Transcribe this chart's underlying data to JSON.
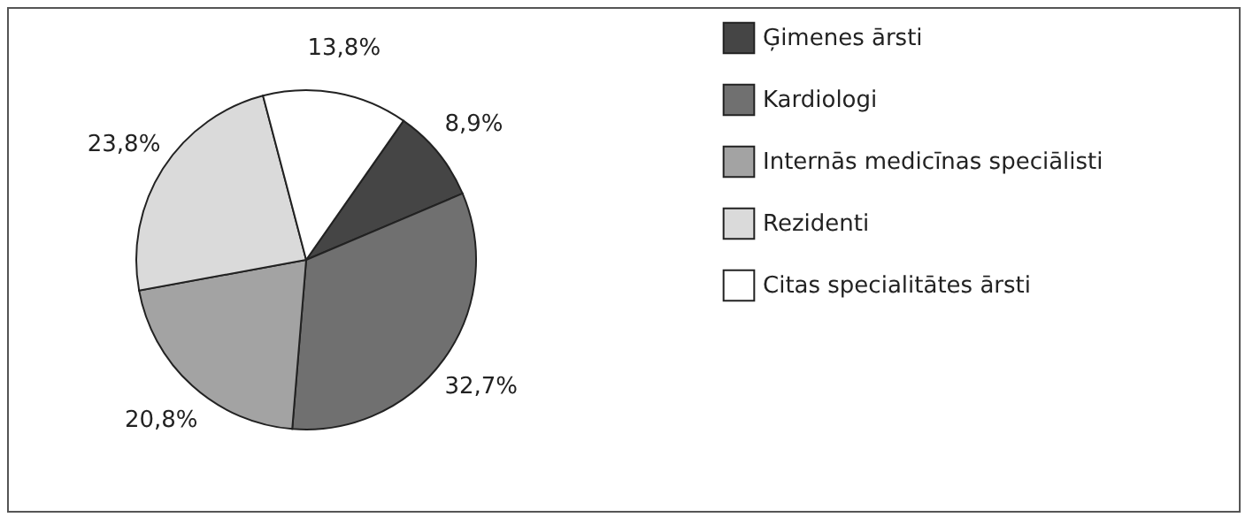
{
  "chart_data": {
    "type": "pie",
    "categories": [
      "Ģimenes ārsti",
      "Kardiologi",
      "Internās medicīnas speciālisti",
      "Rezidenti",
      "Citas specialitātes ārsti"
    ],
    "values": [
      8.9,
      32.7,
      20.8,
      23.8,
      13.8
    ],
    "value_labels": [
      "8,9%",
      "32,7%",
      "20,8%",
      "23,8%",
      "13,8%"
    ],
    "colors": [
      "#454545",
      "#707070",
      "#a3a3a3",
      "#dadada",
      "#ffffff"
    ],
    "legend": "right"
  }
}
